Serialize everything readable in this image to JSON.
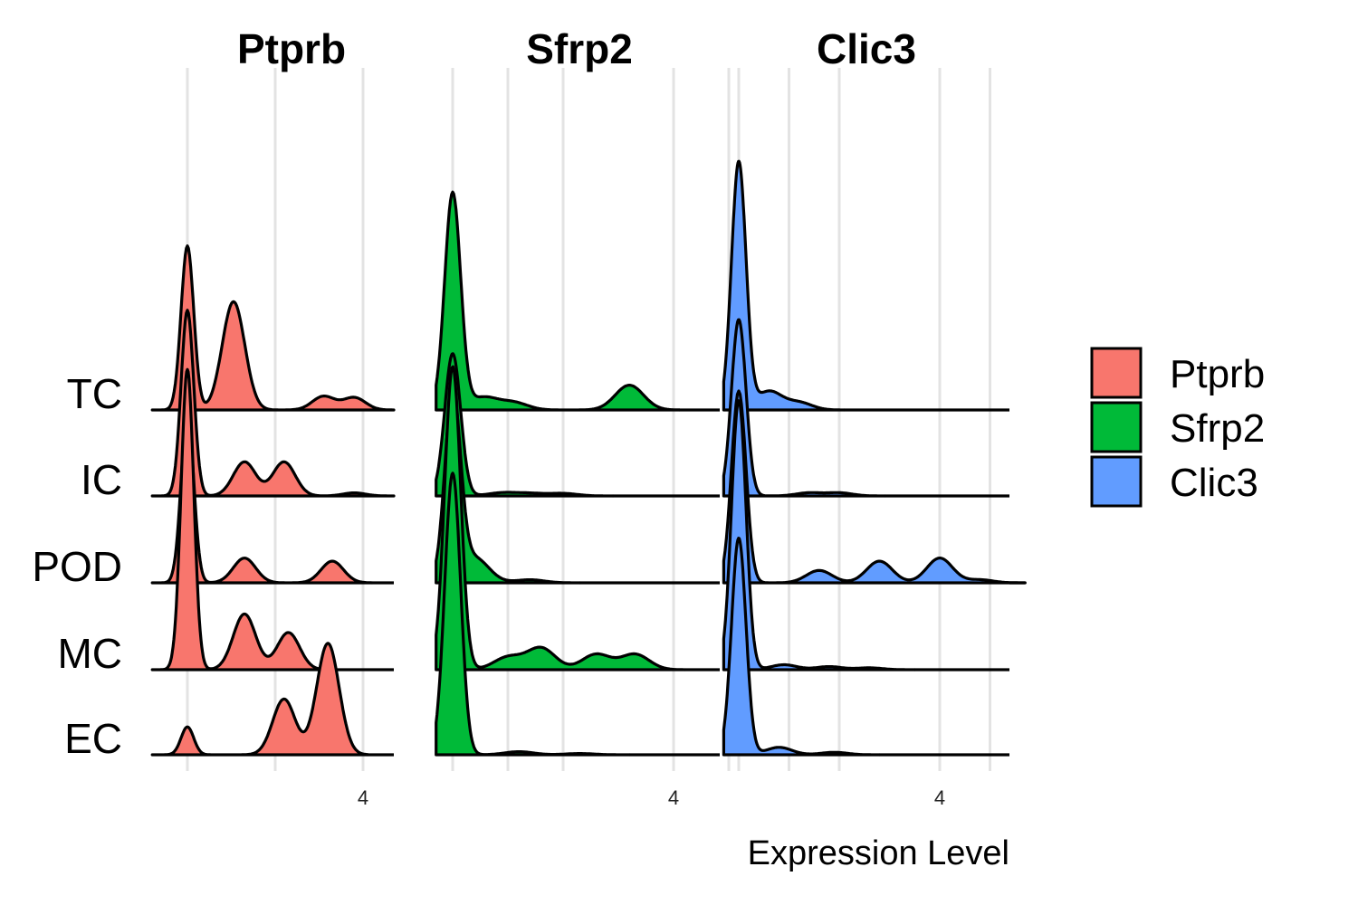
{
  "chart_data": {
    "type": "ridgeline",
    "xlabel": "Expression Level",
    "rows": [
      "TC",
      "IC",
      "POD",
      "MC",
      "EC"
    ],
    "legend": {
      "position": "right",
      "entries": [
        "Ptprb",
        "Sfrp2",
        "Clic3"
      ]
    },
    "colors": {
      "Ptprb": "#F8766D",
      "Sfrp2": "#00BA38",
      "Clic3": "#619CFF"
    },
    "panels": [
      {
        "name": "Ptprb",
        "color": "#F8766D",
        "xlim": [
          -0.8,
          5.0
        ],
        "ticks": [
          4
        ],
        "gridlines": [
          0,
          2,
          4
        ],
        "rows": {
          "TC": [
            [
              0.0,
              2.65
            ],
            [
              1.05,
              1.75
            ],
            [
              3.1,
              0.22
            ],
            [
              3.8,
              0.2
            ]
          ],
          "IC": [
            [
              0.0,
              3.0
            ],
            [
              1.3,
              0.55
            ],
            [
              2.2,
              0.55
            ],
            [
              3.8,
              0.05
            ]
          ],
          "POD": [
            [
              0.0,
              2.75
            ],
            [
              1.3,
              0.4
            ],
            [
              3.3,
              0.35
            ]
          ],
          "MC": [
            [
              0.0,
              4.85
            ],
            [
              1.3,
              0.9
            ],
            [
              2.3,
              0.6
            ]
          ],
          "EC": [
            [
              0.0,
              0.45
            ],
            [
              2.2,
              0.9
            ],
            [
              3.2,
              1.8
            ]
          ]
        }
      },
      {
        "name": "Sfrp2",
        "color": "#00BA38",
        "xlim": [
          -0.3,
          5.5
        ],
        "ticks": [
          4
        ],
        "gridlines": [
          0,
          1,
          2,
          4,
          5
        ],
        "rows": {
          "TC": [
            [
              0.0,
              3.5
            ],
            [
              0.55,
              0.2
            ],
            [
              1.1,
              0.12
            ],
            [
              3.2,
              0.4
            ]
          ],
          "IC": [
            [
              0.0,
              2.3
            ],
            [
              0.9,
              0.05
            ],
            [
              1.4,
              0.04
            ],
            [
              2.0,
              0.04
            ]
          ],
          "POD": [
            [
              0.0,
              3.0
            ],
            [
              0.4,
              0.4
            ],
            [
              1.4,
              0.05
            ]
          ],
          "MC": [
            [
              0.0,
              4.9
            ],
            [
              1.0,
              0.2
            ],
            [
              1.6,
              0.35
            ],
            [
              2.6,
              0.25
            ],
            [
              3.3,
              0.25
            ]
          ],
          "EC": [
            [
              0.0,
              4.55
            ],
            [
              1.2,
              0.05
            ],
            [
              2.3,
              0.02
            ]
          ]
        }
      },
      {
        "name": "Clic3",
        "color": "#619CFF",
        "xlim": [
          -0.3,
          5.5
        ],
        "ticks": [
          4
        ],
        "gridlines": [
          0,
          1,
          2,
          4,
          5
        ],
        "rows": {
          "TC": [
            [
              0.0,
              4.0
            ],
            [
              0.6,
              0.3
            ],
            [
              1.2,
              0.12
            ]
          ],
          "IC": [
            [
              0.0,
              2.85
            ],
            [
              1.4,
              0.05
            ],
            [
              2.0,
              0.05
            ]
          ],
          "POD": [
            [
              0.0,
              3.1
            ],
            [
              1.6,
              0.2
            ],
            [
              2.8,
              0.35
            ],
            [
              4.0,
              0.4
            ],
            [
              4.8,
              0.05
            ]
          ],
          "MC": [
            [
              0.0,
              4.35
            ],
            [
              0.9,
              0.08
            ],
            [
              1.8,
              0.05
            ],
            [
              2.6,
              0.03
            ]
          ],
          "EC": [
            [
              0.0,
              3.5
            ],
            [
              0.8,
              0.12
            ],
            [
              1.9,
              0.04
            ]
          ]
        }
      }
    ]
  }
}
